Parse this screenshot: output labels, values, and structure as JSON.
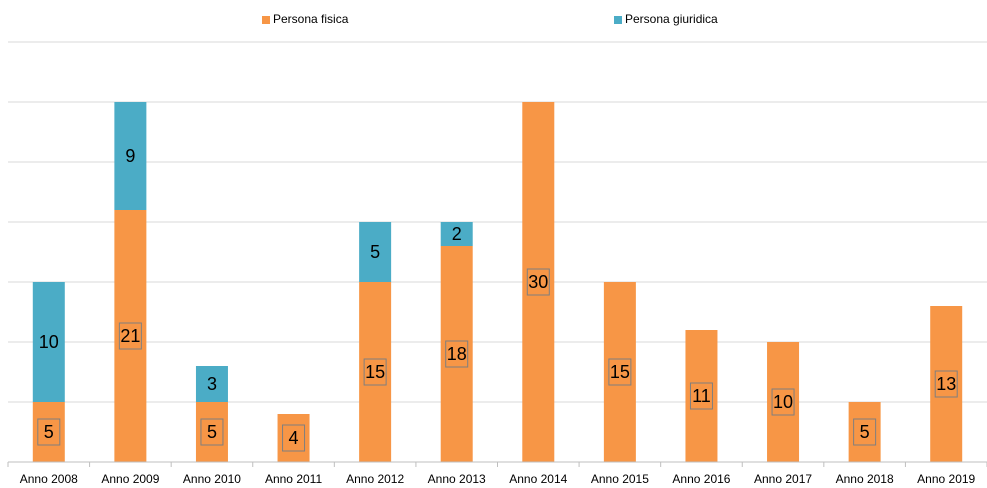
{
  "chart_data": {
    "type": "stacked_bar",
    "categories": [
      "Anno 2008",
      "Anno 2009",
      "Anno 2010",
      "Anno 2011",
      "Anno 2012",
      "Anno 2013",
      "Anno 2014",
      "Anno 2015",
      "Anno 2016",
      "Anno 2017",
      "Anno 2018",
      "Anno 2019"
    ],
    "series": [
      {
        "name": "Persona fisica",
        "color": "#f79646",
        "values": [
          5,
          21,
          5,
          4,
          15,
          18,
          30,
          15,
          11,
          10,
          5,
          13
        ]
      },
      {
        "name": "Persona giuridica",
        "color": "#4bacc6",
        "values": [
          10,
          9,
          3,
          null,
          5,
          2,
          null,
          null,
          null,
          null,
          null,
          null
        ]
      }
    ],
    "ylim": [
      0,
      35
    ],
    "yticks": [
      0,
      5,
      10,
      15,
      20,
      25,
      30,
      35
    ],
    "grid": true,
    "legend": "top"
  }
}
